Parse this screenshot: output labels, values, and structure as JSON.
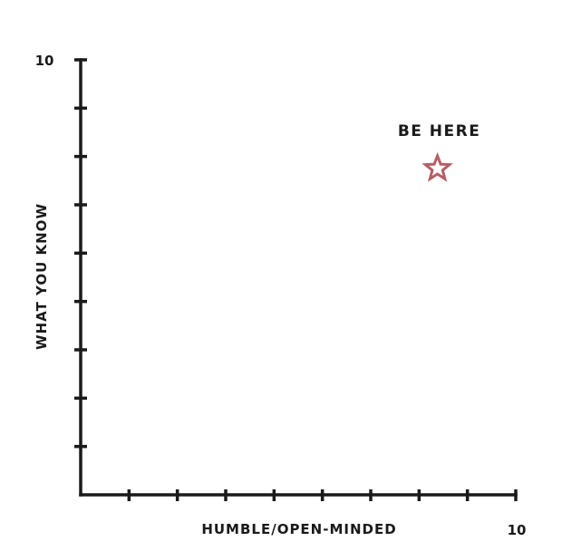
{
  "chart_data": {
    "type": "scatter",
    "title": "",
    "xlabel": "HUMBLE/OPEN-MINDED",
    "ylabel": "WHAT YOU KNOW",
    "xlim": [
      0,
      10
    ],
    "ylim": [
      0,
      10
    ],
    "x_tick_count": 9,
    "y_tick_count": 9,
    "x_max_label": "10",
    "y_max_label": "10",
    "grid": false,
    "points": [
      {
        "x": 8.2,
        "y": 7.5,
        "label": "BE HERE",
        "marker": "star-outline"
      }
    ]
  },
  "colors": {
    "axis": "#1a1a1a",
    "star": "#b85c65",
    "text": "#1a1a1a"
  }
}
